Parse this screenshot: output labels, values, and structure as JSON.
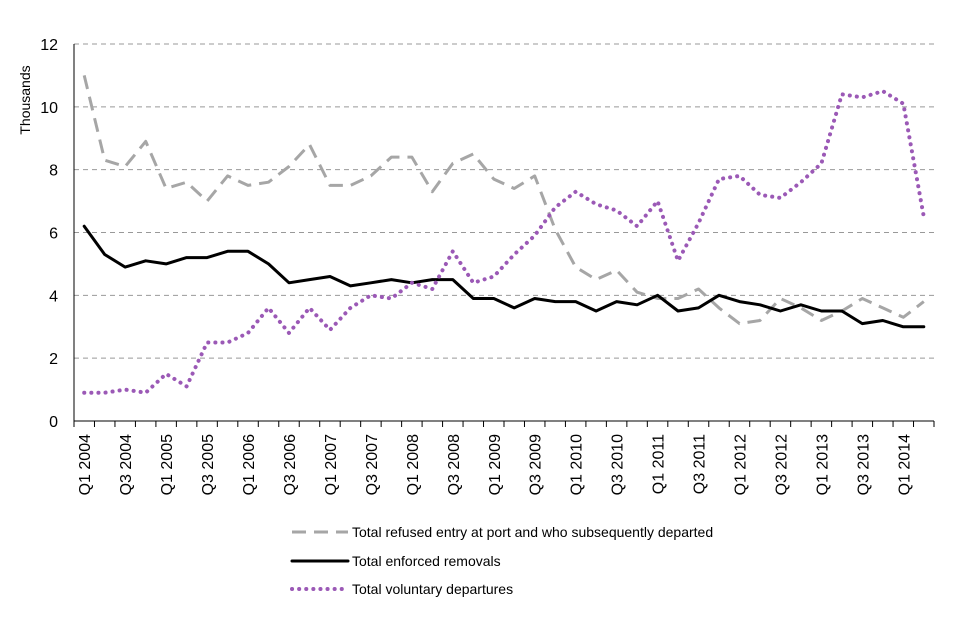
{
  "chart_data": {
    "type": "line",
    "ylabel": "Thousands",
    "ylim": [
      0,
      12
    ],
    "yticks": [
      0,
      2,
      4,
      6,
      8,
      10,
      12
    ],
    "grid": "horizontal dashed",
    "legend_position": "bottom",
    "categories": [
      "Q1 2004",
      "Q2 2004",
      "Q3 2004",
      "Q4 2004",
      "Q1 2005",
      "Q2 2005",
      "Q3 2005",
      "Q4 2005",
      "Q1 2006",
      "Q2 2006",
      "Q3 2006",
      "Q4 2006",
      "Q1 2007",
      "Q2 2007",
      "Q3 2007",
      "Q4 2007",
      "Q1 2008",
      "Q2 2008",
      "Q3 2008",
      "Q4 2008",
      "Q1 2009",
      "Q2 2009",
      "Q3 2009",
      "Q4 2009",
      "Q1 2010",
      "Q2 2010",
      "Q3 2010",
      "Q4 2010",
      "Q1 2011",
      "Q2 2011",
      "Q3 2011",
      "Q4 2011",
      "Q1 2012",
      "Q2 2012",
      "Q3 2012",
      "Q4 2012",
      "Q1 2013",
      "Q2 2013",
      "Q3 2013",
      "Q4 2013",
      "Q1 2014",
      "Q2 2014"
    ],
    "tick_labels": [
      "Q1 2004",
      "Q3 2004",
      "Q1 2005",
      "Q3 2005",
      "Q1 2006",
      "Q3 2006",
      "Q1 2007",
      "Q3 2007",
      "Q1 2008",
      "Q3 2008",
      "Q1 2009",
      "Q3 2009",
      "Q1 2010",
      "Q3 2010",
      "Q1 2011",
      "Q3 2011",
      "Q1 2012",
      "Q3 2012",
      "Q1 2013",
      "Q3 2013",
      "Q1 2014"
    ],
    "series": [
      {
        "name": "Total refused entry at port and who subsequently departed",
        "color": "#a6a6a6",
        "style": "dashed",
        "values": [
          11.0,
          8.3,
          8.1,
          8.9,
          7.4,
          7.6,
          7.0,
          7.8,
          7.5,
          7.6,
          8.1,
          8.8,
          7.5,
          7.5,
          7.8,
          8.4,
          8.4,
          7.3,
          8.2,
          8.5,
          7.7,
          7.4,
          7.8,
          6.1,
          4.9,
          4.5,
          4.8,
          4.1,
          3.9,
          3.9,
          4.2,
          3.6,
          3.1,
          3.2,
          3.9,
          3.6,
          3.2,
          3.5,
          3.9,
          3.6,
          3.3,
          3.8
        ]
      },
      {
        "name": "Total enforced removals",
        "color": "#000000",
        "style": "solid",
        "values": [
          6.2,
          5.3,
          4.9,
          5.1,
          5.0,
          5.2,
          5.2,
          5.4,
          5.4,
          5.0,
          4.4,
          4.5,
          4.6,
          4.3,
          4.4,
          4.5,
          4.4,
          4.5,
          4.5,
          3.9,
          3.9,
          3.6,
          3.9,
          3.8,
          3.8,
          3.5,
          3.8,
          3.7,
          4.0,
          3.5,
          3.6,
          4.0,
          3.8,
          3.7,
          3.5,
          3.7,
          3.5,
          3.5,
          3.1,
          3.2,
          3.0,
          3.0
        ]
      },
      {
        "name": "Total voluntary departures",
        "color": "#9b59b6",
        "style": "dotted",
        "values": [
          0.9,
          0.9,
          1.0,
          0.9,
          1.5,
          1.1,
          2.5,
          2.5,
          2.8,
          3.6,
          2.8,
          3.6,
          2.9,
          3.6,
          4.0,
          3.9,
          4.4,
          4.2,
          5.4,
          4.4,
          4.6,
          5.3,
          5.9,
          6.8,
          7.3,
          6.9,
          6.7,
          6.2,
          7.0,
          5.1,
          6.3,
          7.7,
          7.8,
          7.2,
          7.1,
          7.6,
          8.2,
          10.4,
          10.3,
          10.5,
          10.1,
          6.5
        ]
      }
    ]
  }
}
